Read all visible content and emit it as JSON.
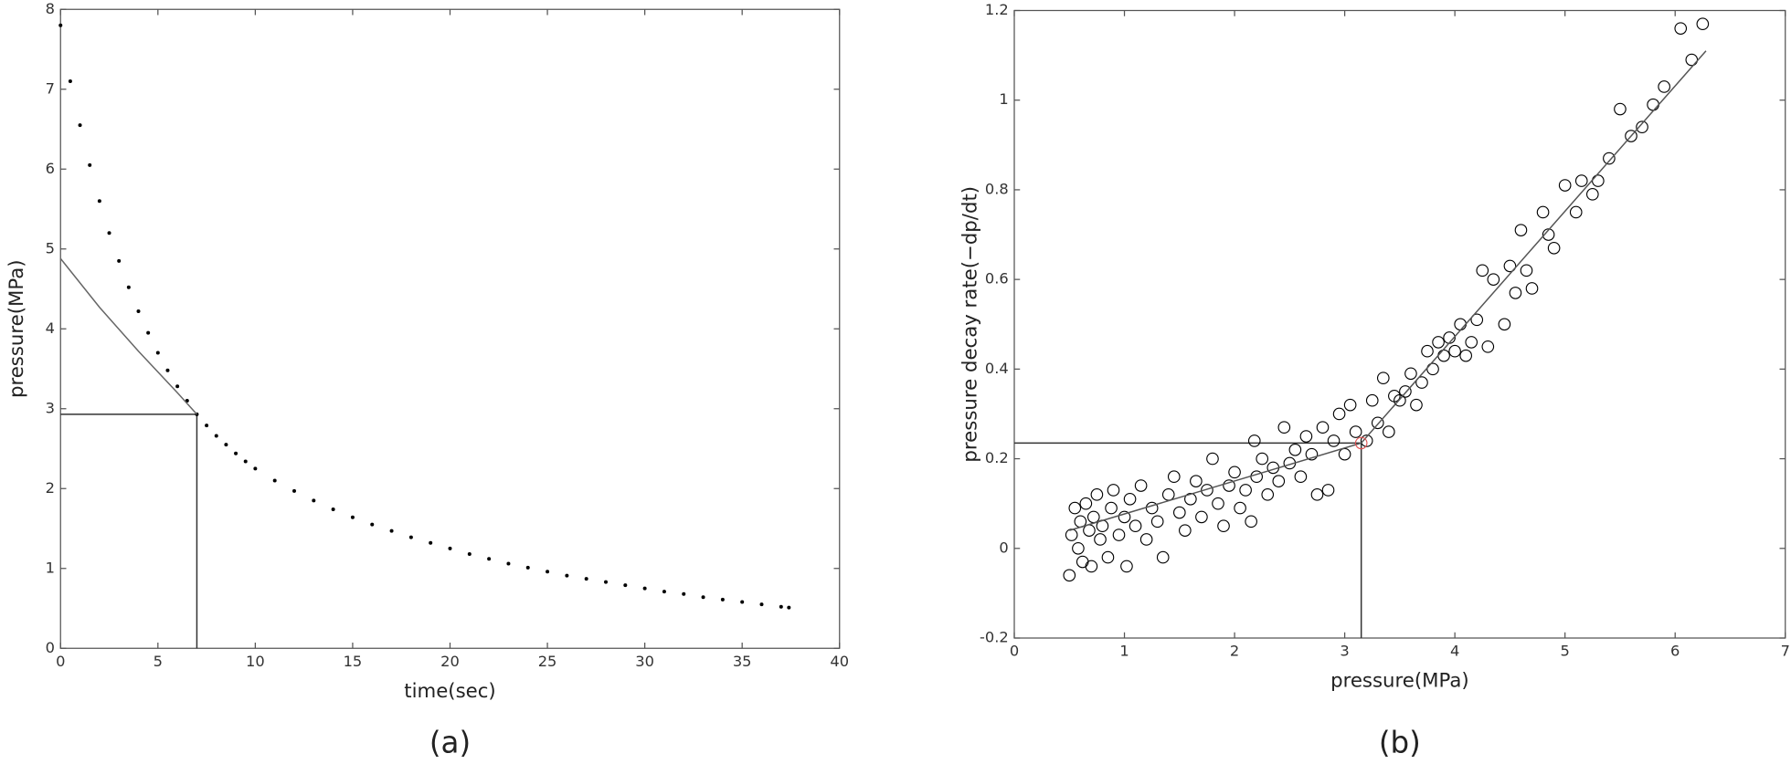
{
  "chart_data": [
    {
      "type": "scatter",
      "xlabel": "time(sec)",
      "ylabel": "pressure(MPa)",
      "caption": "(a)",
      "xlim": [
        0,
        40
      ],
      "ylim": [
        0,
        8
      ],
      "xticks": [
        0,
        5,
        10,
        15,
        20,
        25,
        30,
        35,
        40
      ],
      "yticks": [
        0,
        1,
        2,
        3,
        4,
        5,
        6,
        7,
        8
      ],
      "crosshair": {
        "x": 7,
        "y": 2.93
      },
      "series": [
        {
          "mode": "markers",
          "marker": "dot",
          "color": "#000000",
          "x": [
            0,
            0.5,
            1,
            1.5,
            2,
            2.5,
            3,
            3.5,
            4,
            4.5,
            5,
            5.5,
            6,
            6.5,
            7,
            7.5,
            8,
            8.5,
            9,
            9.5,
            10,
            11,
            12,
            13,
            14,
            15,
            16,
            17,
            18,
            19,
            20,
            21,
            22,
            23,
            24,
            25,
            26,
            27,
            28,
            29,
            30,
            31,
            32,
            33,
            34,
            35,
            36,
            37,
            37.4
          ],
          "values": [
            7.8,
            7.1,
            6.55,
            6.05,
            5.6,
            5.2,
            4.85,
            4.52,
            4.22,
            3.95,
            3.7,
            3.48,
            3.28,
            3.1,
            2.93,
            2.79,
            2.66,
            2.55,
            2.44,
            2.34,
            2.25,
            2.1,
            1.97,
            1.85,
            1.74,
            1.64,
            1.55,
            1.47,
            1.39,
            1.32,
            1.25,
            1.18,
            1.12,
            1.06,
            1.01,
            0.96,
            0.91,
            0.87,
            0.83,
            0.79,
            0.75,
            0.71,
            0.68,
            0.64,
            0.61,
            0.58,
            0.55,
            0.52,
            0.51
          ]
        },
        {
          "mode": "lines",
          "color": "#666666",
          "x": [
            0,
            2,
            4,
            6,
            7
          ],
          "values": [
            4.88,
            4.27,
            3.72,
            3.2,
            2.93
          ]
        }
      ]
    },
    {
      "type": "scatter",
      "xlabel": "pressure(MPa)",
      "ylabel": "pressure decay rate(−dp/dt)",
      "caption": "(b)",
      "xlim": [
        0,
        7
      ],
      "ylim": [
        -0.2,
        1.2
      ],
      "xticks": [
        0,
        1,
        2,
        3,
        4,
        5,
        6,
        7
      ],
      "yticks": [
        -0.2,
        0,
        0.2,
        0.4,
        0.6,
        0.8,
        1,
        1.2
      ],
      "crosshair": {
        "x": 3.15,
        "y": 0.235
      },
      "series": [
        {
          "mode": "markers",
          "marker": "circle",
          "color": "#000000",
          "x": [
            0.5,
            0.52,
            0.55,
            0.58,
            0.6,
            0.62,
            0.65,
            0.68,
            0.7,
            0.72,
            0.75,
            0.78,
            0.8,
            0.85,
            0.88,
            0.9,
            0.95,
            1.0,
            1.02,
            1.05,
            1.1,
            1.15,
            1.2,
            1.25,
            1.3,
            1.35,
            1.4,
            1.45,
            1.5,
            1.55,
            1.6,
            1.65,
            1.7,
            1.75,
            1.8,
            1.85,
            1.9,
            1.95,
            2.0,
            2.05,
            2.1,
            2.15,
            2.18,
            2.2,
            2.25,
            2.3,
            2.35,
            2.4,
            2.45,
            2.5,
            2.55,
            2.6,
            2.65,
            2.7,
            2.75,
            2.8,
            2.85,
            2.9,
            2.95,
            3.0,
            3.05,
            3.1,
            3.2,
            3.25,
            3.3,
            3.35,
            3.4,
            3.45,
            3.5,
            3.55,
            3.6,
            3.65,
            3.7,
            3.75,
            3.8,
            3.85,
            3.9,
            3.95,
            4.0,
            4.05,
            4.1,
            4.15,
            4.2,
            4.25,
            4.3,
            4.35,
            4.45,
            4.5,
            4.55,
            4.6,
            4.65,
            4.7,
            4.8,
            4.85,
            4.9,
            5.0,
            5.1,
            5.15,
            5.25,
            5.3,
            5.4,
            5.5,
            5.6,
            5.7,
            5.8,
            5.9,
            6.05,
            6.15,
            6.25
          ],
          "values": [
            -0.06,
            0.03,
            0.09,
            0.0,
            0.06,
            -0.03,
            0.1,
            0.04,
            -0.04,
            0.07,
            0.12,
            0.02,
            0.05,
            -0.02,
            0.09,
            0.13,
            0.03,
            0.07,
            -0.04,
            0.11,
            0.05,
            0.14,
            0.02,
            0.09,
            0.06,
            -0.02,
            0.12,
            0.16,
            0.08,
            0.04,
            0.11,
            0.15,
            0.07,
            0.13,
            0.2,
            0.1,
            0.05,
            0.14,
            0.17,
            0.09,
            0.13,
            0.06,
            0.24,
            0.16,
            0.2,
            0.12,
            0.18,
            0.15,
            0.27,
            0.19,
            0.22,
            0.16,
            0.25,
            0.21,
            0.12,
            0.27,
            0.13,
            0.24,
            0.3,
            0.21,
            0.32,
            0.26,
            0.24,
            0.33,
            0.28,
            0.38,
            0.26,
            0.34,
            0.33,
            0.35,
            0.39,
            0.32,
            0.37,
            0.44,
            0.4,
            0.46,
            0.43,
            0.47,
            0.44,
            0.5,
            0.43,
            0.46,
            0.51,
            0.62,
            0.45,
            0.6,
            0.5,
            0.63,
            0.57,
            0.71,
            0.62,
            0.58,
            0.75,
            0.7,
            0.67,
            0.81,
            0.75,
            0.82,
            0.79,
            0.82,
            0.87,
            0.98,
            0.92,
            0.94,
            0.99,
            1.03,
            1.16,
            1.09,
            1.17
          ]
        },
        {
          "mode": "lines",
          "color": "#555555",
          "x": [
            0.5,
            3.15,
            6.28
          ],
          "values": [
            0.04,
            0.235,
            1.11
          ]
        },
        {
          "mode": "markers",
          "marker": "circle",
          "color": "#e05050",
          "x": [
            3.15
          ],
          "values": [
            0.235
          ]
        }
      ]
    }
  ]
}
